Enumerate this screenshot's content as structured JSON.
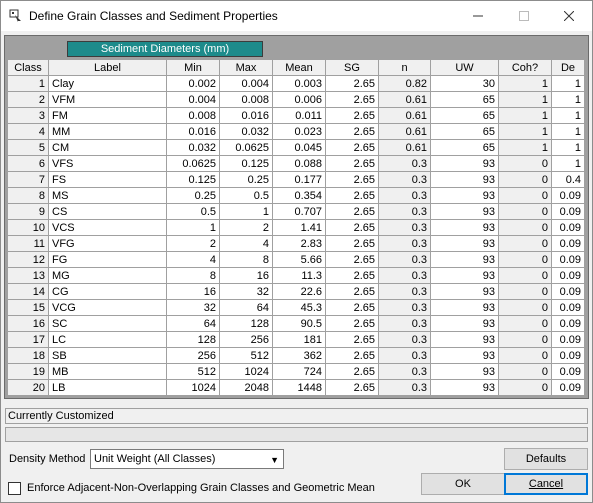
{
  "window": {
    "title": "Define Grain Classes and Sediment Properties",
    "icon": "grain-classes-app-icon"
  },
  "grid": {
    "group_header": "Sediment Diameters (mm)",
    "columns": [
      "Class",
      "Label",
      "Min",
      "Max",
      "Mean",
      "SG",
      "n",
      "UW",
      "Coh?",
      "De"
    ],
    "rows": [
      {
        "class": "1",
        "label": "Clay",
        "min": "0.002",
        "max": "0.004",
        "mean": "0.003",
        "sg": "2.65",
        "n": "0.82",
        "uw": "30",
        "coh": "1",
        "de": "1"
      },
      {
        "class": "2",
        "label": "VFM",
        "min": "0.004",
        "max": "0.008",
        "mean": "0.006",
        "sg": "2.65",
        "n": "0.61",
        "uw": "65",
        "coh": "1",
        "de": "1"
      },
      {
        "class": "3",
        "label": "FM",
        "min": "0.008",
        "max": "0.016",
        "mean": "0.011",
        "sg": "2.65",
        "n": "0.61",
        "uw": "65",
        "coh": "1",
        "de": "1"
      },
      {
        "class": "4",
        "label": "MM",
        "min": "0.016",
        "max": "0.032",
        "mean": "0.023",
        "sg": "2.65",
        "n": "0.61",
        "uw": "65",
        "coh": "1",
        "de": "1"
      },
      {
        "class": "5",
        "label": "CM",
        "min": "0.032",
        "max": "0.0625",
        "mean": "0.045",
        "sg": "2.65",
        "n": "0.61",
        "uw": "65",
        "coh": "1",
        "de": "1"
      },
      {
        "class": "6",
        "label": "VFS",
        "min": "0.0625",
        "max": "0.125",
        "mean": "0.088",
        "sg": "2.65",
        "n": "0.3",
        "uw": "93",
        "coh": "0",
        "de": "1"
      },
      {
        "class": "7",
        "label": "FS",
        "min": "0.125",
        "max": "0.25",
        "mean": "0.177",
        "sg": "2.65",
        "n": "0.3",
        "uw": "93",
        "coh": "0",
        "de": "0.4"
      },
      {
        "class": "8",
        "label": "MS",
        "min": "0.25",
        "max": "0.5",
        "mean": "0.354",
        "sg": "2.65",
        "n": "0.3",
        "uw": "93",
        "coh": "0",
        "de": "0.09"
      },
      {
        "class": "9",
        "label": "CS",
        "min": "0.5",
        "max": "1",
        "mean": "0.707",
        "sg": "2.65",
        "n": "0.3",
        "uw": "93",
        "coh": "0",
        "de": "0.09"
      },
      {
        "class": "10",
        "label": "VCS",
        "min": "1",
        "max": "2",
        "mean": "1.41",
        "sg": "2.65",
        "n": "0.3",
        "uw": "93",
        "coh": "0",
        "de": "0.09"
      },
      {
        "class": "11",
        "label": "VFG",
        "min": "2",
        "max": "4",
        "mean": "2.83",
        "sg": "2.65",
        "n": "0.3",
        "uw": "93",
        "coh": "0",
        "de": "0.09"
      },
      {
        "class": "12",
        "label": "FG",
        "min": "4",
        "max": "8",
        "mean": "5.66",
        "sg": "2.65",
        "n": "0.3",
        "uw": "93",
        "coh": "0",
        "de": "0.09"
      },
      {
        "class": "13",
        "label": "MG",
        "min": "8",
        "max": "16",
        "mean": "11.3",
        "sg": "2.65",
        "n": "0.3",
        "uw": "93",
        "coh": "0",
        "de": "0.09"
      },
      {
        "class": "14",
        "label": "CG",
        "min": "16",
        "max": "32",
        "mean": "22.6",
        "sg": "2.65",
        "n": "0.3",
        "uw": "93",
        "coh": "0",
        "de": "0.09"
      },
      {
        "class": "15",
        "label": "VCG",
        "min": "32",
        "max": "64",
        "mean": "45.3",
        "sg": "2.65",
        "n": "0.3",
        "uw": "93",
        "coh": "0",
        "de": "0.09"
      },
      {
        "class": "16",
        "label": "SC",
        "min": "64",
        "max": "128",
        "mean": "90.5",
        "sg": "2.65",
        "n": "0.3",
        "uw": "93",
        "coh": "0",
        "de": "0.09"
      },
      {
        "class": "17",
        "label": "LC",
        "min": "128",
        "max": "256",
        "mean": "181",
        "sg": "2.65",
        "n": "0.3",
        "uw": "93",
        "coh": "0",
        "de": "0.09"
      },
      {
        "class": "18",
        "label": "SB",
        "min": "256",
        "max": "512",
        "mean": "362",
        "sg": "2.65",
        "n": "0.3",
        "uw": "93",
        "coh": "0",
        "de": "0.09"
      },
      {
        "class": "19",
        "label": "MB",
        "min": "512",
        "max": "1024",
        "mean": "724",
        "sg": "2.65",
        "n": "0.3",
        "uw": "93",
        "coh": "0",
        "de": "0.09"
      },
      {
        "class": "20",
        "label": "LB",
        "min": "1024",
        "max": "2048",
        "mean": "1448",
        "sg": "2.65",
        "n": "0.3",
        "uw": "93",
        "coh": "0",
        "de": "0.09"
      }
    ]
  },
  "status": {
    "text": "Currently Customized"
  },
  "density": {
    "label": "Density Method",
    "selected": "Unit Weight (All Classes)"
  },
  "buttons": {
    "defaults": "Defaults",
    "ok": "OK",
    "cancel": "Cancel"
  },
  "enforce": {
    "label": "Enforce Adjacent-Non-Overlapping Grain Classes and Geometric Mean",
    "checked": false
  },
  "colors": {
    "group_header_bg": "#1d8b8b",
    "focus_border": "#0078d7"
  }
}
